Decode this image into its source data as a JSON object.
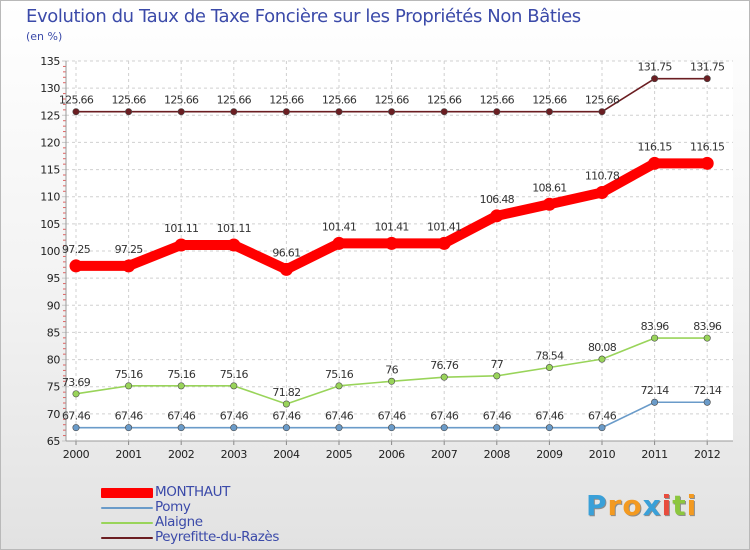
{
  "chart_data": {
    "type": "line",
    "title": "Evolution du Taux de Taxe Foncière sur les Propriétés Non Bâties",
    "subtitle": "(en %)",
    "xlabel": "",
    "ylabel": "(en %)",
    "categories": [
      "2000",
      "2001",
      "2002",
      "2003",
      "2004",
      "2005",
      "2006",
      "2007",
      "2008",
      "2009",
      "2010",
      "2011",
      "2012"
    ],
    "ylim": [
      65,
      135
    ],
    "yticks": [
      "65",
      "70",
      "75",
      "80",
      "85",
      "90",
      "95",
      "100",
      "105",
      "110",
      "115",
      "120",
      "125",
      "130",
      "135"
    ],
    "grid": true,
    "legend_position": "bottom-left",
    "series": [
      {
        "name": "Peyrefitte-du-Razès",
        "color": "#6b1e22",
        "values": [
          125.66,
          125.66,
          125.66,
          125.66,
          125.66,
          125.66,
          125.66,
          125.66,
          125.66,
          125.66,
          125.66,
          131.75,
          131.75
        ],
        "labels": [
          "125.66",
          "125.66",
          "125.66",
          "125.66",
          "125.66",
          "125.66",
          "125.66",
          "125.66",
          "125.66",
          "125.66",
          "125.66",
          "131.75",
          "131.75"
        ]
      },
      {
        "name": "Alaigne",
        "color": "#99d45a",
        "values": [
          73.69,
          75.16,
          75.16,
          75.16,
          71.82,
          75.16,
          76,
          76.76,
          77,
          78.54,
          80.08,
          83.96,
          83.96
        ],
        "labels": [
          "73.69",
          "75.16",
          "75.16",
          "75.16",
          "71.82",
          "75.16",
          "76",
          "76.76",
          "77",
          "78.54",
          "80.08",
          "83.96",
          "83.96"
        ]
      },
      {
        "name": "Pomy",
        "color": "#6a9bc9",
        "values": [
          67.46,
          67.46,
          67.46,
          67.46,
          67.46,
          67.46,
          67.46,
          67.46,
          67.46,
          67.46,
          67.46,
          72.14,
          72.14
        ],
        "labels": [
          "67.46",
          "67.46",
          "67.46",
          "67.46",
          "67.46",
          "67.46",
          "67.46",
          "67.46",
          "67.46",
          "67.46",
          "67.46",
          "72.14",
          "72.14"
        ]
      },
      {
        "name": "MONTHAUT",
        "color": "#ff0000",
        "values": [
          97.25,
          97.25,
          101.11,
          101.11,
          96.61,
          101.41,
          101.41,
          101.41,
          106.48,
          108.61,
          110.78,
          116.15,
          116.15
        ],
        "labels": [
          "97.25",
          "97.25",
          "101.11",
          "101.11",
          "96.61",
          "101.41",
          "101.41",
          "101.41",
          "106.48",
          "108.61",
          "110.78",
          "116.15",
          "116.15"
        ]
      }
    ]
  },
  "legend": [
    {
      "label": "MONTHAUT",
      "color": "#ff0000"
    },
    {
      "label": "Pomy",
      "color": "#6a9bc9"
    },
    {
      "label": "Alaigne",
      "color": "#99d45a"
    },
    {
      "label": "Peyrefitte-du-Razès",
      "color": "#6b1e22"
    }
  ],
  "logo": {
    "letters": [
      "P",
      "r",
      "o",
      "x",
      "i",
      "t",
      "i"
    ],
    "colors": [
      "#3aa0d8",
      "#f39a21",
      "#f39a21",
      "#3aa0d8",
      "#e84c3d",
      "#8cc63f",
      "#f39a21"
    ]
  }
}
